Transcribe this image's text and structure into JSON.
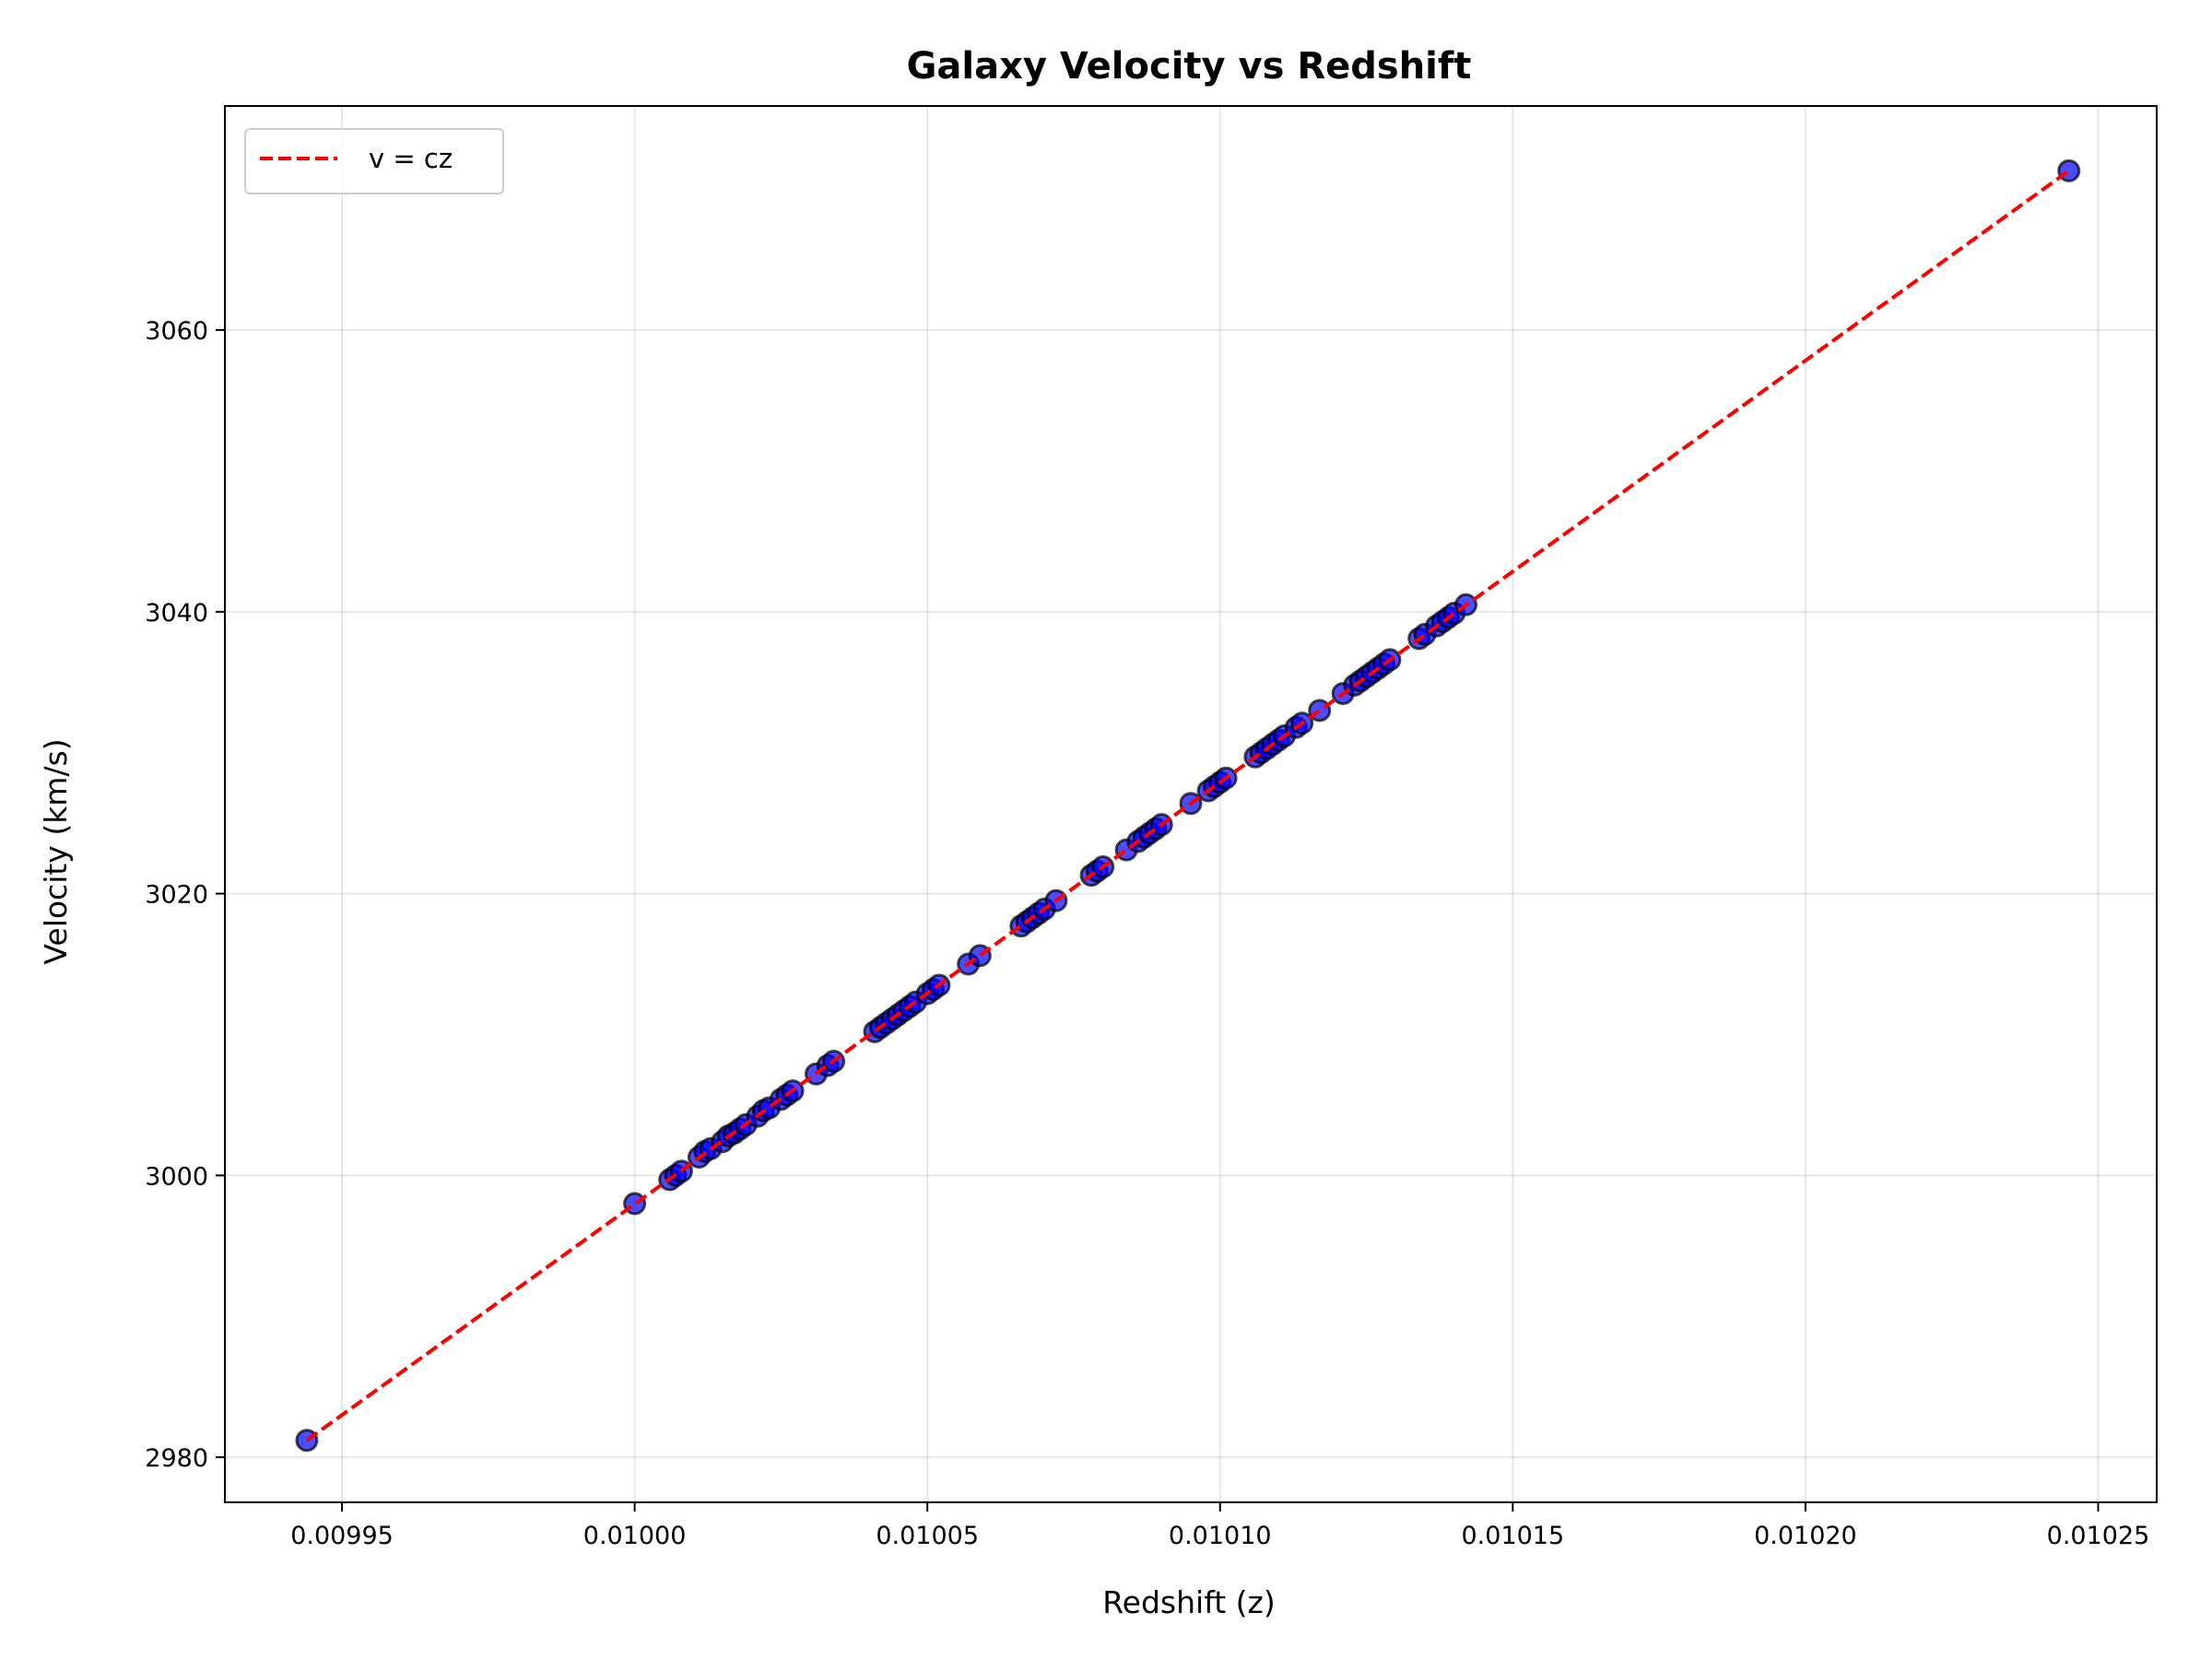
{
  "chart_data": {
    "type": "scatter",
    "title": "Galaxy Velocity vs Redshift",
    "xlabel": "Redshift (z)",
    "ylabel": "Velocity (km/s)",
    "xlim": [
      0.00993,
      0.01026
    ],
    "ylim": [
      2976.8,
      3075.9
    ],
    "xticks": [
      0.00995,
      0.01,
      0.01005,
      0.0101,
      0.01015,
      0.0102,
      0.01025
    ],
    "xtick_labels": [
      "0.00995",
      "0.01000",
      "0.01005",
      "0.01010",
      "0.01015",
      "0.01020",
      "0.01025"
    ],
    "yticks": [
      2980,
      3000,
      3020,
      3040,
      3060
    ],
    "ytick_labels": [
      "2980",
      "3000",
      "3020",
      "3040",
      "3060"
    ],
    "grid": true,
    "legend_position": "top-left",
    "series": [
      {
        "name": "",
        "kind": "scatter",
        "color": "#0000ff",
        "edge_color": "#000000",
        "alpha": 0.7,
        "x": [
          0.009944,
          0.01,
          0.010006,
          0.010007,
          0.010008,
          0.010011,
          0.010012,
          0.010013,
          0.010015,
          0.010016,
          0.010017,
          0.010018,
          0.010019,
          0.010021,
          0.010022,
          0.010023,
          0.010025,
          0.010026,
          0.010027,
          0.010031,
          0.010033,
          0.010034,
          0.010041,
          0.010042,
          0.010043,
          0.010044,
          0.010045,
          0.010046,
          0.010047,
          0.010048,
          0.01005,
          0.010051,
          0.010052,
          0.010057,
          0.010059,
          0.010066,
          0.010067,
          0.010068,
          0.010069,
          0.01007,
          0.010072,
          0.010078,
          0.010079,
          0.01008,
          0.010084,
          0.010086,
          0.010087,
          0.010088,
          0.010089,
          0.01009,
          0.010095,
          0.010098,
          0.010099,
          0.0101,
          0.010101,
          0.010106,
          0.010107,
          0.010108,
          0.010109,
          0.01011,
          0.010111,
          0.010113,
          0.010114,
          0.010117,
          0.010121,
          0.010123,
          0.010124,
          0.010125,
          0.010126,
          0.010127,
          0.010128,
          0.010129,
          0.010134,
          0.010135,
          0.010137,
          0.010138,
          0.010139,
          0.01014,
          0.010142,
          0.010245
        ],
        "y": [
          2981.2,
          2998.0,
          2999.7,
          3000.0,
          3000.3,
          3001.3,
          3001.7,
          3001.9,
          3002.4,
          3002.8,
          3003.0,
          3003.3,
          3003.6,
          3004.2,
          3004.6,
          3004.8,
          3005.4,
          3005.7,
          3006.0,
          3007.2,
          3007.8,
          3008.1,
          3010.2,
          3010.5,
          3010.8,
          3011.1,
          3011.4,
          3011.7,
          3012.0,
          3012.3,
          3012.9,
          3013.2,
          3013.5,
          3015.0,
          3015.6,
          3017.7,
          3018.0,
          3018.3,
          3018.6,
          3018.9,
          3019.5,
          3021.3,
          3021.6,
          3021.9,
          3023.1,
          3023.7,
          3024.0,
          3024.3,
          3024.6,
          3024.9,
          3026.4,
          3027.3,
          3027.6,
          3027.9,
          3028.2,
          3029.7,
          3030.0,
          3030.3,
          3030.6,
          3030.9,
          3031.2,
          3031.8,
          3032.1,
          3033.0,
          3034.2,
          3034.8,
          3035.1,
          3035.4,
          3035.7,
          3036.0,
          3036.3,
          3036.6,
          3038.1,
          3038.4,
          3039.0,
          3039.3,
          3039.6,
          3039.9,
          3040.5,
          3071.3
        ]
      },
      {
        "name": "v = cz",
        "kind": "line",
        "style": "dashed",
        "color": "#ff0000",
        "x": [
          0.009944,
          0.010245
        ],
        "y": [
          2981.2,
          3071.3
        ]
      }
    ]
  }
}
